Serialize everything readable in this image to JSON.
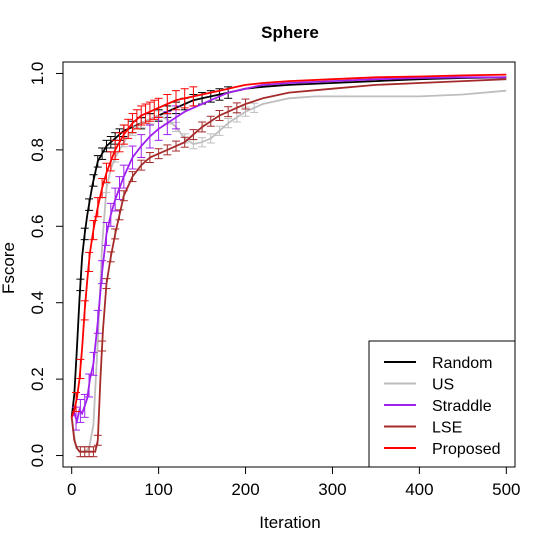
{
  "chart_data": {
    "type": "line",
    "title": "Sphere",
    "xlabel": "Iteration",
    "ylabel": "Fscore",
    "xlim": [
      -10,
      510
    ],
    "ylim": [
      -0.03,
      1.03
    ],
    "x_ticks": [
      "0",
      "100",
      "200",
      "300",
      "400",
      "500"
    ],
    "x_tick_values": [
      0,
      100,
      200,
      300,
      400,
      500
    ],
    "y_ticks": [
      "0.0",
      "0.2",
      "0.4",
      "0.6",
      "0.8",
      "1.0"
    ],
    "y_tick_values": [
      0,
      0.2,
      0.4,
      0.6,
      0.8,
      1.0
    ],
    "grid": false,
    "legend_position": "bottom-right",
    "series": [
      {
        "name": "Random",
        "color": "#000000",
        "x": [
          0,
          3,
          6,
          9,
          12,
          15,
          18,
          21,
          24,
          27,
          30,
          35,
          40,
          45,
          50,
          55,
          60,
          70,
          80,
          90,
          100,
          110,
          120,
          130,
          140,
          150,
          160,
          170,
          180,
          190,
          200,
          220,
          250,
          300,
          350,
          400,
          450,
          500
        ],
        "y": [
          0.1,
          0.16,
          0.28,
          0.41,
          0.52,
          0.58,
          0.63,
          0.67,
          0.71,
          0.74,
          0.77,
          0.79,
          0.81,
          0.82,
          0.83,
          0.84,
          0.85,
          0.86,
          0.87,
          0.88,
          0.89,
          0.9,
          0.91,
          0.92,
          0.93,
          0.935,
          0.94,
          0.945,
          0.95,
          0.955,
          0.96,
          0.965,
          0.97,
          0.975,
          0.98,
          0.985,
          0.988,
          0.99
        ],
        "err_x": [
          10,
          15,
          20,
          25,
          30,
          35,
          40,
          45,
          50,
          55,
          60,
          70,
          80,
          90,
          100,
          110,
          120,
          130,
          140,
          150,
          160,
          170,
          180
        ],
        "err": 0.015
      },
      {
        "name": "US",
        "color": "#bebebe",
        "x": [
          0,
          5,
          10,
          15,
          20,
          25,
          30,
          35,
          40,
          45,
          50,
          60,
          70,
          80,
          90,
          100,
          110,
          120,
          130,
          140,
          150,
          160,
          170,
          180,
          190,
          200,
          220,
          250,
          280,
          300,
          350,
          400,
          450,
          500
        ],
        "y": [
          0.1,
          0.02,
          0.01,
          0.01,
          0.02,
          0.08,
          0.3,
          0.55,
          0.7,
          0.75,
          0.78,
          0.82,
          0.85,
          0.87,
          0.88,
          0.89,
          0.88,
          0.86,
          0.83,
          0.815,
          0.82,
          0.83,
          0.85,
          0.87,
          0.885,
          0.9,
          0.92,
          0.935,
          0.94,
          0.94,
          0.94,
          0.94,
          0.945,
          0.955
        ],
        "err_x": [
          40,
          50,
          60,
          70,
          80,
          90,
          100,
          110,
          120,
          130,
          140,
          150,
          160,
          170,
          180,
          190,
          200,
          210
        ],
        "err": 0.012
      },
      {
        "name": "Straddle",
        "color": "#a020f0",
        "x": [
          0,
          3,
          6,
          9,
          12,
          15,
          18,
          21,
          25,
          30,
          35,
          40,
          45,
          50,
          55,
          60,
          70,
          80,
          90,
          100,
          110,
          120,
          130,
          140,
          150,
          160,
          170,
          180,
          190,
          200,
          220,
          250,
          300,
          350,
          400,
          450,
          500
        ],
        "y": [
          0.1,
          0.11,
          0.09,
          0.12,
          0.11,
          0.13,
          0.15,
          0.2,
          0.24,
          0.35,
          0.48,
          0.58,
          0.63,
          0.67,
          0.7,
          0.73,
          0.78,
          0.81,
          0.835,
          0.855,
          0.87,
          0.885,
          0.9,
          0.91,
          0.92,
          0.93,
          0.94,
          0.95,
          0.955,
          0.96,
          0.97,
          0.975,
          0.98,
          0.985,
          0.988,
          0.99,
          0.99
        ],
        "err_x": [
          5,
          10,
          15,
          20,
          25,
          30,
          35,
          40,
          45,
          50,
          55,
          60,
          70,
          80,
          90,
          100,
          110,
          120
        ],
        "err": 0.03
      },
      {
        "name": "LSE",
        "color": "#a52a2a",
        "x": [
          0,
          3,
          6,
          9,
          12,
          15,
          18,
          21,
          24,
          27,
          30,
          33,
          36,
          40,
          45,
          50,
          55,
          60,
          70,
          80,
          90,
          100,
          110,
          120,
          130,
          140,
          150,
          160,
          170,
          180,
          190,
          200,
          220,
          250,
          300,
          350,
          400,
          450,
          500
        ],
        "y": [
          0.1,
          0.04,
          0.02,
          0.01,
          0.01,
          0.01,
          0.01,
          0.01,
          0.01,
          0.01,
          0.04,
          0.2,
          0.33,
          0.45,
          0.52,
          0.58,
          0.63,
          0.68,
          0.73,
          0.76,
          0.78,
          0.79,
          0.8,
          0.81,
          0.82,
          0.84,
          0.86,
          0.875,
          0.89,
          0.9,
          0.91,
          0.92,
          0.935,
          0.95,
          0.96,
          0.97,
          0.975,
          0.98,
          0.985
        ],
        "err_x": [
          10,
          15,
          20,
          25,
          30,
          35,
          40,
          45,
          50,
          55,
          60,
          70,
          80,
          90,
          100,
          110,
          120,
          130,
          140,
          150,
          160,
          170,
          180,
          190,
          200
        ],
        "err": 0.013
      },
      {
        "name": "Proposed",
        "color": "#ff0000",
        "x": [
          0,
          3,
          6,
          9,
          12,
          15,
          18,
          21,
          25,
          30,
          35,
          40,
          45,
          50,
          55,
          60,
          70,
          80,
          90,
          100,
          110,
          120,
          130,
          140,
          150,
          160,
          170,
          180,
          190,
          200,
          220,
          250,
          300,
          350,
          400,
          450,
          500
        ],
        "y": [
          0.1,
          0.12,
          0.15,
          0.2,
          0.28,
          0.38,
          0.46,
          0.53,
          0.59,
          0.65,
          0.7,
          0.74,
          0.77,
          0.8,
          0.82,
          0.84,
          0.87,
          0.89,
          0.9,
          0.91,
          0.92,
          0.93,
          0.935,
          0.94,
          0.945,
          0.95,
          0.955,
          0.96,
          0.965,
          0.97,
          0.975,
          0.98,
          0.985,
          0.99,
          0.992,
          0.995,
          0.997
        ],
        "err_x": [
          5,
          10,
          15,
          20,
          25,
          30,
          35,
          40,
          45,
          50,
          55,
          60,
          65,
          70,
          75,
          80,
          85,
          90,
          95,
          100,
          110,
          120,
          130,
          140
        ],
        "err": 0.025
      }
    ]
  }
}
